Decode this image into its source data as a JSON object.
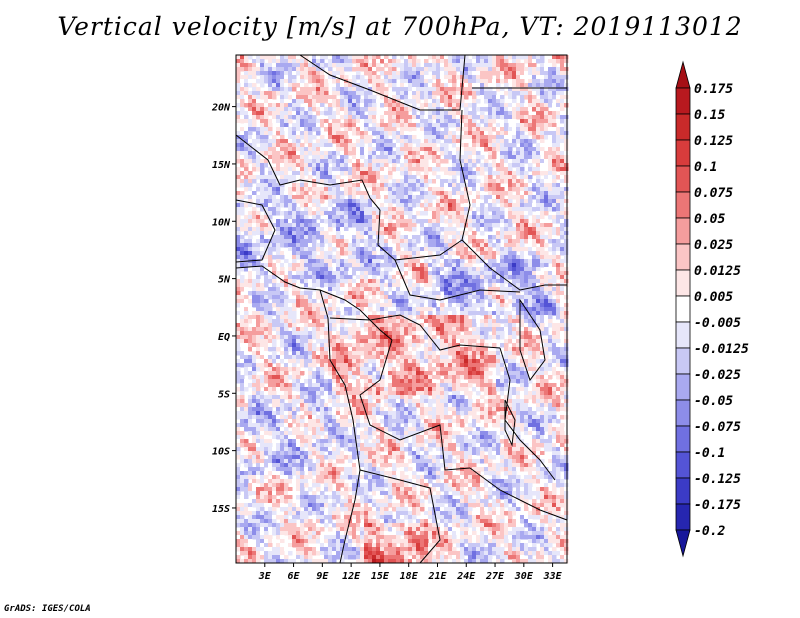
{
  "title": "Vertical velocity [m/s] at 700hPa, VT: 2019113012",
  "footer": "GrADS: IGES/COLA",
  "map": {
    "region": "Central Africa",
    "lat_labels": [
      "20N",
      "15N",
      "10N",
      "5N",
      "EQ",
      "5S",
      "10S",
      "15S"
    ],
    "lon_labels": [
      "3E",
      "6E",
      "9E",
      "12E",
      "15E",
      "18E",
      "21E",
      "24E",
      "27E",
      "30E",
      "33E"
    ],
    "lon_range": [
      0,
      34.5
    ],
    "lat_range": [
      -19.8,
      24.5
    ]
  },
  "colorbar": {
    "levels": [
      "0.175",
      "0.15",
      "0.125",
      "0.1",
      "0.075",
      "0.05",
      "0.025",
      "0.0125",
      "0.005",
      "-0.005",
      "-0.0125",
      "-0.025",
      "-0.05",
      "-0.075",
      "-0.1",
      "-0.125",
      "-0.175",
      "-0.2"
    ],
    "colors": [
      "#a50f15",
      "#b8191f",
      "#c92a2a",
      "#d83c3c",
      "#e25555",
      "#ec7676",
      "#f59d9d",
      "#fbc5c5",
      "#fde6e6",
      "#ffffff",
      "#e6e6fa",
      "#c8c8f5",
      "#a9a9f0",
      "#8d8de9",
      "#7070e1",
      "#5454d6",
      "#3b3bc6",
      "#2626b0",
      "#17179a"
    ]
  },
  "chart_data": {
    "type": "heatmap",
    "title": "Vertical velocity [m/s] at 700hPa, VT: 2019113012",
    "variable": "Vertical velocity",
    "units": "m/s",
    "level": "700hPa",
    "valid_time": "2019113012",
    "x_ticks": [
      "3E",
      "6E",
      "9E",
      "12E",
      "15E",
      "18E",
      "21E",
      "24E",
      "27E",
      "30E",
      "33E"
    ],
    "y_ticks": [
      "20N",
      "15N",
      "10N",
      "5N",
      "EQ",
      "5S",
      "10S",
      "15S"
    ],
    "contour_levels": [
      -0.2,
      -0.175,
      -0.125,
      -0.1,
      -0.075,
      -0.05,
      -0.025,
      -0.0125,
      -0.005,
      0.005,
      0.0125,
      0.025,
      0.05,
      0.075,
      0.1,
      0.125,
      0.15,
      0.175
    ]
  }
}
